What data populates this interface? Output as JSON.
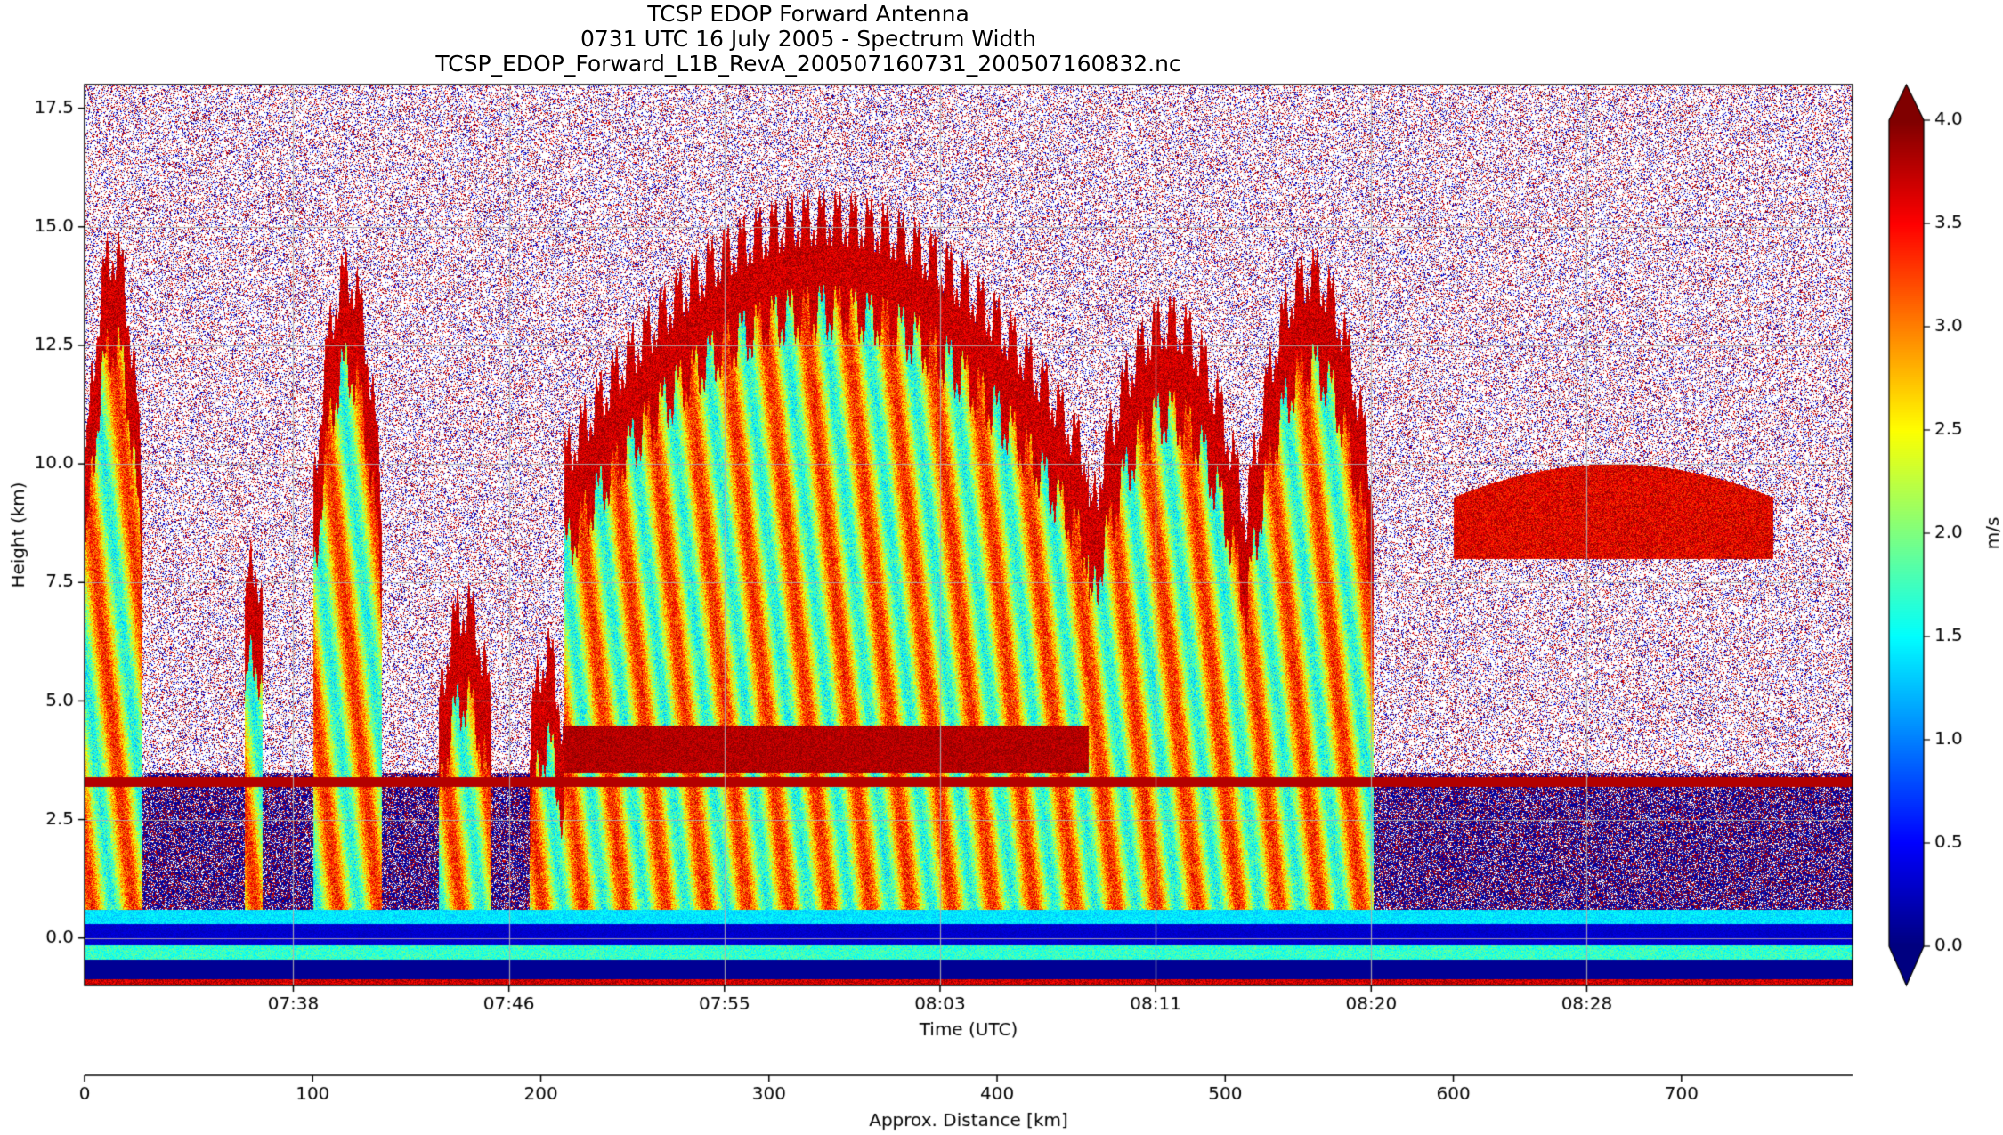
{
  "title_lines": [
    "TCSP EDOP Forward Antenna",
    "0731 UTC 16 July 2005 - Spectrum Width",
    "TCSP_EDOP_Forward_L1B_RevA_200507160731_200507160832.nc"
  ],
  "chart_data": {
    "type": "heatmap",
    "title": "TCSP EDOP Forward Antenna\n0731 UTC 16 July 2005 - Spectrum Width\nTCSP_EDOP_Forward_L1B_RevA_200507160731_200507160832.nc",
    "xlabel": "Time (UTC)",
    "ylabel": "Height (km)",
    "x2label": "Approx. Distance [km]",
    "xticks": [
      "07:38",
      "07:46",
      "07:55",
      "08:03",
      "08:11",
      "08:20",
      "08:28"
    ],
    "xtick_positions_km": [
      91.5,
      186,
      280.5,
      375,
      469.5,
      564,
      658.5
    ],
    "x2ticks": [
      0,
      100,
      200,
      300,
      400,
      500,
      600,
      700
    ],
    "x2lim": [
      0,
      775
    ],
    "yticks": [
      0.0,
      2.5,
      5.0,
      7.5,
      10.0,
      12.5,
      15.0,
      17.5
    ],
    "ylim": [
      -1.0,
      18.0
    ],
    "grid": true,
    "colorbar": {
      "label": "m/s",
      "range": [
        0.0,
        4.0
      ],
      "ticks": [
        0.0,
        0.5,
        1.0,
        1.5,
        2.0,
        2.5,
        3.0,
        3.5,
        4.0
      ],
      "extend": "both",
      "colormap": "jet",
      "colors": [
        "#000080",
        "#0000ff",
        "#0080ff",
        "#00ffff",
        "#80ff80",
        "#ffff00",
        "#ff8000",
        "#ff0000",
        "#800000"
      ]
    },
    "cloud_features": [
      {
        "x": [
          0,
          25
        ],
        "top": 14.5,
        "bottom": 0.6
      },
      {
        "x": [
          70,
          78
        ],
        "top": 8.0,
        "bottom": 4.0
      },
      {
        "x": [
          100,
          130
        ],
        "top": 14.0,
        "bottom": 0.6
      },
      {
        "x": [
          155,
          178
        ],
        "top": 7.0,
        "bottom": 0.6
      },
      {
        "x": [
          195,
          210
        ],
        "top": 6.0,
        "bottom": 0.6
      },
      {
        "x": [
          210,
          440
        ],
        "top": 15.2,
        "bottom": 0.6
      },
      {
        "x": [
          440,
          510
        ],
        "top": 13.0,
        "bottom": 0.6
      },
      {
        "x": [
          510,
          565
        ],
        "top": 14.0,
        "bottom": 0.6
      },
      {
        "x": [
          600,
          740
        ],
        "top": 10.0,
        "bottom": 8.0
      }
    ],
    "bright_band_height": 3.3
  }
}
